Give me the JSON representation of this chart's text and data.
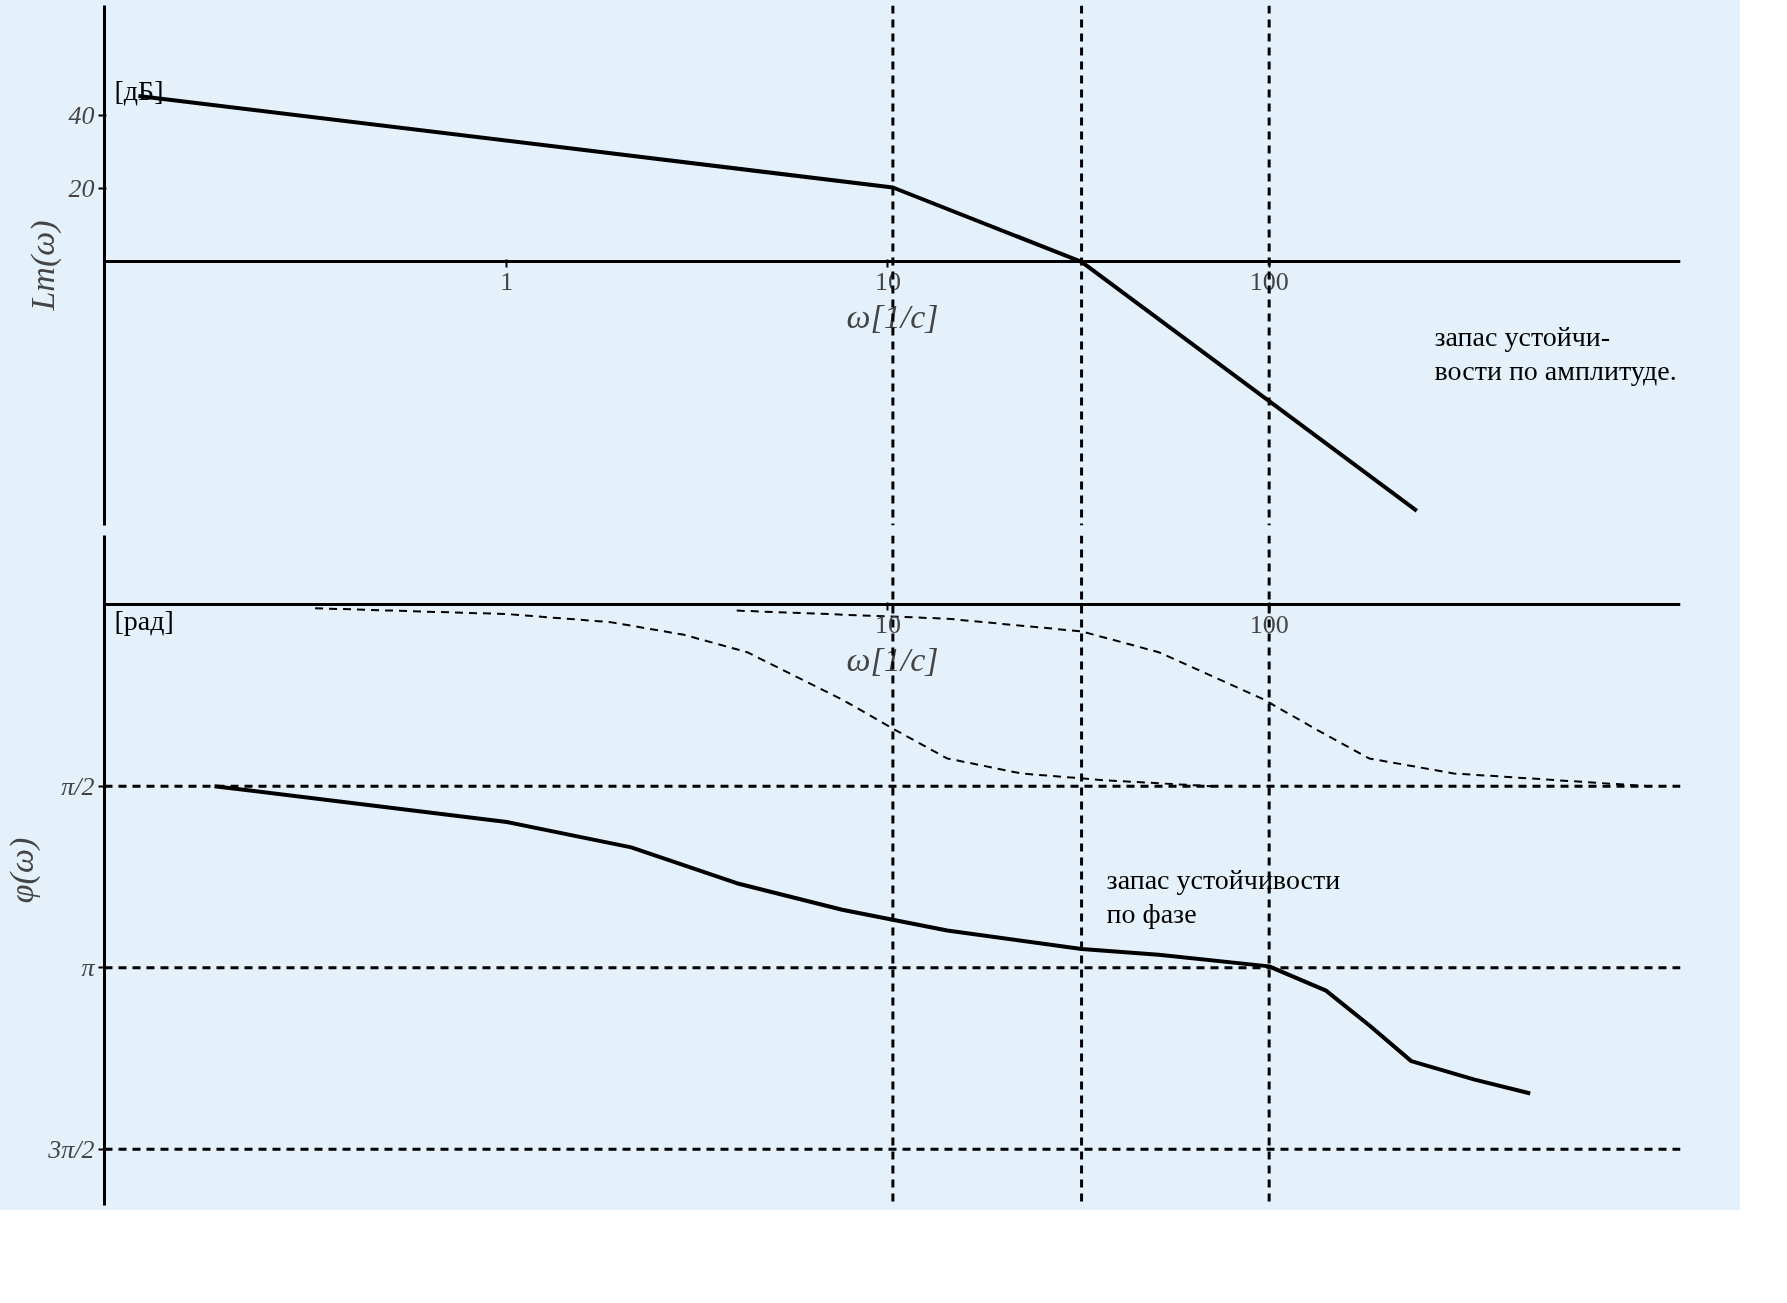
{
  "chart_data": [
    {
      "type": "line",
      "ylabel": "Lm(ω)",
      "xlabel": "ω[1/c]",
      "log": "x",
      "grid": false,
      "xlim": [
        0.088,
        1200
      ],
      "xticks": [
        1,
        10,
        100
      ],
      "ylim": [
        -72,
        70
      ],
      "yticks": [
        20,
        40
      ],
      "series": [
        {
          "color": "#000000",
          "x": [
            0.108,
            10.3,
            32.2,
            244
          ],
          "values": [
            45.3,
            20.3,
            0,
            -68
          ]
        }
      ],
      "ref_lines": [
        {
          "axis": "x",
          "value": 10.3,
          "line_style": "dashed"
        },
        {
          "axis": "x",
          "value": 32.2,
          "line_style": "dashed"
        },
        {
          "axis": "x",
          "value": 100,
          "line_style": "dashed"
        }
      ],
      "annotations": [
        "[дБ]",
        "запас устойчи-\nвости по амплитуде."
      ]
    },
    {
      "type": "line",
      "ylabel": "φ(ω)",
      "xlabel": "ω[1/c]",
      "log": "x",
      "grid": false,
      "xlim": [
        0.088,
        1200
      ],
      "xticks": [
        10,
        100
      ],
      "ylim": [
        -5.2,
        0.6
      ],
      "yticks": [
        {
          "value": -1.5708,
          "label": "π/2"
        },
        {
          "value": -3.1416,
          "label": "π"
        },
        {
          "value": -4.7124,
          "label": "3π/2"
        }
      ],
      "series": [
        {
          "color": "#000000",
          "line_style": "dashed",
          "x": [
            0.314,
            1,
            1.87,
            2.92,
            4.27,
            7.58,
            10.4,
            14.3,
            22.4,
            37.3,
            70.5
          ],
          "values": [
            -0.03,
            -0.08,
            -0.15,
            -0.26,
            -0.41,
            -0.82,
            -1.08,
            -1.33,
            -1.46,
            -1.52,
            -1.57
          ]
        },
        {
          "color": "#000000",
          "line_style": "dashed",
          "x": [
            4.01,
            14.3,
            32.2,
            51.3,
            96.9,
            133,
            183,
            305,
            991
          ],
          "values": [
            -0.05,
            -0.12,
            -0.23,
            -0.41,
            -0.82,
            -1.08,
            -1.33,
            -1.46,
            -1.57
          ]
        },
        {
          "color": "#000000",
          "line_style": "solid",
          "x": [
            0.171,
            1,
            2.12,
            4.01,
            7.58,
            14.3,
            32.2,
            51.3,
            100,
            141,
            183,
            236,
            346,
            484
          ],
          "values": [
            -1.57,
            -1.88,
            -2.1,
            -2.41,
            -2.64,
            -2.82,
            -2.98,
            -3.03,
            -3.13,
            -3.34,
            -3.64,
            -3.95,
            -4.11,
            -4.23
          ]
        }
      ],
      "ref_lines": [
        {
          "axis": "x",
          "value": 10.3,
          "line_style": "dashed"
        },
        {
          "axis": "x",
          "value": 32.2,
          "line_style": "dashed"
        },
        {
          "axis": "x",
          "value": 100,
          "line_style": "dashed"
        },
        {
          "axis": "y",
          "value": -1.5708,
          "line_style": "dashed"
        },
        {
          "axis": "y",
          "value": -3.1416,
          "line_style": "dashed"
        },
        {
          "axis": "y",
          "value": -4.7124,
          "line_style": "dashed"
        }
      ],
      "annotations": [
        "[рад]",
        {
          "text": "запас устойчивости\nпо фазе",
          "x": 32.2,
          "y": -2.98
        }
      ]
    }
  ]
}
